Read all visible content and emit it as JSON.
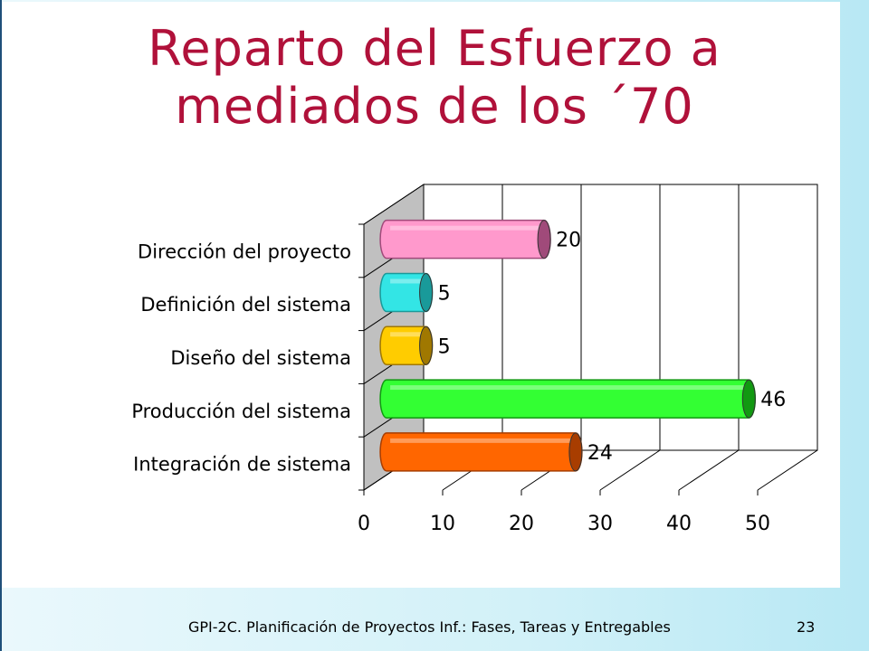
{
  "slide": {
    "title_line1": "Reparto del Esfuerzo a",
    "title_line2": "mediados de los ´70",
    "footer": "GPI-2C. Planificación de Proyectos Inf.: Fases, Tareas y Entregables",
    "page_number": "23"
  },
  "colors": {
    "title": "#b0113a",
    "wall": "#c0c0c0"
  },
  "chart_data": {
    "type": "bar",
    "orientation": "horizontal",
    "style": "3d-cylinder",
    "categories": [
      "Dirección del proyecto",
      "Definición del sistema",
      "Diseño del sistema",
      "Producción del sistema",
      "Integración de sistema"
    ],
    "values": [
      20,
      5,
      5,
      46,
      24
    ],
    "colors": [
      "#ff99cc",
      "#33e5e5",
      "#ffcc00",
      "#33ff33",
      "#ff6600"
    ],
    "cap_colors": [
      "#a04a7a",
      "#199a9a",
      "#a07800",
      "#119911",
      "#a83d00"
    ],
    "xlim": [
      0,
      50
    ],
    "xticks": [
      0,
      10,
      20,
      30,
      40,
      50
    ],
    "grid": true,
    "data_labels": true,
    "legend": "none"
  }
}
